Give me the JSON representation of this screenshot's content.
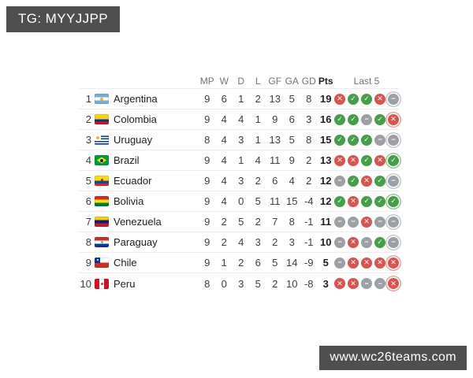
{
  "badges": {
    "top_left": "TG: MYYJJPP",
    "bottom_right": "www.wc26teams.com"
  },
  "colors": {
    "badge_bg": "#4F4F4F",
    "win": "#43A047",
    "loss": "#D9534F",
    "draw": "#9CA0A5",
    "win_ring": "#8FCE93",
    "loss_ring": "#ECA5A3",
    "draw_ring": "#C6C8CC"
  },
  "legend": {
    "glyphs": {
      "W": "✓",
      "L": "✕",
      "D": "−"
    },
    "names": {
      "W": "win",
      "L": "loss",
      "D": "draw"
    }
  },
  "table": {
    "headers": [
      "MP",
      "W",
      "D",
      "L",
      "GF",
      "GA",
      "GD",
      "Pts",
      "Last 5"
    ],
    "rows": [
      {
        "pos": 1,
        "team": "Argentina",
        "flag": "argentina",
        "mp": 9,
        "w": 6,
        "d": 1,
        "l": 2,
        "gf": 13,
        "ga": 5,
        "gd": 8,
        "pts": 19,
        "last5": [
          "L",
          "W",
          "W",
          "L",
          "D"
        ]
      },
      {
        "pos": 2,
        "team": "Colombia",
        "flag": "colombia",
        "mp": 9,
        "w": 4,
        "d": 4,
        "l": 1,
        "gf": 9,
        "ga": 6,
        "gd": 3,
        "pts": 16,
        "last5": [
          "W",
          "W",
          "D",
          "W",
          "L"
        ]
      },
      {
        "pos": 3,
        "team": "Uruguay",
        "flag": "uruguay",
        "mp": 8,
        "w": 4,
        "d": 3,
        "l": 1,
        "gf": 13,
        "ga": 5,
        "gd": 8,
        "pts": 15,
        "last5": [
          "W",
          "W",
          "W",
          "D",
          "D"
        ]
      },
      {
        "pos": 4,
        "team": "Brazil",
        "flag": "brazil",
        "mp": 9,
        "w": 4,
        "d": 1,
        "l": 4,
        "gf": 11,
        "ga": 9,
        "gd": 2,
        "pts": 13,
        "last5": [
          "L",
          "L",
          "W",
          "L",
          "W"
        ]
      },
      {
        "pos": 5,
        "team": "Ecuador",
        "flag": "ecuador",
        "mp": 9,
        "w": 4,
        "d": 3,
        "l": 2,
        "gf": 6,
        "ga": 4,
        "gd": 2,
        "pts": 12,
        "last5": [
          "D",
          "W",
          "L",
          "W",
          "D"
        ]
      },
      {
        "pos": 6,
        "team": "Bolivia",
        "flag": "bolivia",
        "mp": 9,
        "w": 4,
        "d": 0,
        "l": 5,
        "gf": 11,
        "ga": 15,
        "gd": -4,
        "pts": 12,
        "last5": [
          "W",
          "L",
          "W",
          "W",
          "W"
        ]
      },
      {
        "pos": 7,
        "team": "Venezuela",
        "flag": "venezuela",
        "mp": 9,
        "w": 2,
        "d": 5,
        "l": 2,
        "gf": 7,
        "ga": 8,
        "gd": -1,
        "pts": 11,
        "last5": [
          "D",
          "D",
          "L",
          "D",
          "D"
        ]
      },
      {
        "pos": 8,
        "team": "Paraguay",
        "flag": "paraguay",
        "mp": 9,
        "w": 2,
        "d": 4,
        "l": 3,
        "gf": 2,
        "ga": 3,
        "gd": -1,
        "pts": 10,
        "last5": [
          "D",
          "L",
          "D",
          "W",
          "D"
        ]
      },
      {
        "pos": 9,
        "team": "Chile",
        "flag": "chile",
        "mp": 9,
        "w": 1,
        "d": 2,
        "l": 6,
        "gf": 5,
        "ga": 14,
        "gd": -9,
        "pts": 5,
        "last5": [
          "D",
          "L",
          "L",
          "L",
          "L"
        ]
      },
      {
        "pos": 10,
        "team": "Peru",
        "flag": "peru",
        "mp": 8,
        "w": 0,
        "d": 3,
        "l": 5,
        "gf": 2,
        "ga": 10,
        "gd": -8,
        "pts": 3,
        "last5": [
          "L",
          "L",
          "D",
          "D",
          "L"
        ]
      }
    ]
  }
}
